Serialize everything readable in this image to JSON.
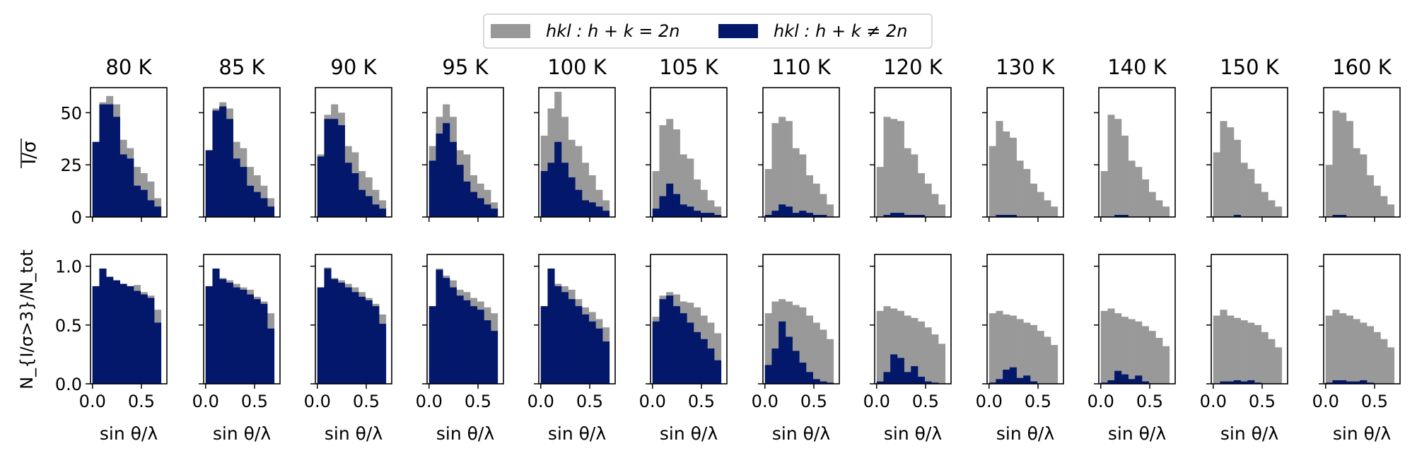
{
  "legend": {
    "placement": "top-center",
    "entries": [
      {
        "label": "hkl : h + k = 2n",
        "color": "#999999"
      },
      {
        "label": "hkl : h + k ≠ 2n",
        "color": "#03176b"
      }
    ]
  },
  "colors": {
    "allowed": "#999999",
    "forbidden": "#03176b"
  },
  "chart_data": {
    "type": "bar",
    "layout": "small-multiples 2x12 stacked-overlap histograms",
    "xlabel": "sin θ/λ",
    "x_bin_edges": [
      0.0,
      0.07,
      0.14,
      0.21,
      0.28,
      0.35,
      0.42,
      0.49,
      0.56,
      0.63,
      0.7
    ],
    "xlim": [
      -0.02,
      0.76
    ],
    "xticks": [
      0.0,
      0.5
    ],
    "xtick_labels": [
      "0.0",
      "0.5"
    ],
    "rows": [
      {
        "name": "mean_i_sigma",
        "ylabel": "I/σ",
        "ylim": [
          0,
          62
        ],
        "yticks": [
          0,
          25,
          50
        ],
        "ytick_labels": [
          "0",
          "25",
          "50"
        ]
      },
      {
        "name": "fraction_strong",
        "ylabel": "N_{I/σ>3}/N_tot",
        "ylim": [
          0,
          1.1
        ],
        "yticks": [
          0.0,
          0.5,
          1.0
        ],
        "ytick_labels": [
          "0.0",
          "0.5",
          "1.0"
        ]
      }
    ],
    "panels": [
      {
        "title": "80 K",
        "mean_i_sigma": {
          "allowed": [
            36,
            55,
            58,
            54,
            37,
            33,
            24,
            21,
            17,
            9
          ],
          "forbidden": [
            36,
            54,
            54,
            48,
            30,
            28,
            15,
            13,
            8,
            5
          ]
        },
        "fraction_strong": {
          "allowed": [
            0.83,
            0.98,
            0.91,
            0.88,
            0.85,
            0.83,
            0.84,
            0.78,
            0.75,
            0.63
          ],
          "forbidden": [
            0.83,
            0.98,
            0.91,
            0.88,
            0.85,
            0.83,
            0.79,
            0.76,
            0.73,
            0.52
          ]
        }
      },
      {
        "title": "85 K",
        "mean_i_sigma": {
          "allowed": [
            32,
            52,
            55,
            52,
            36,
            33,
            24,
            20,
            15,
            9
          ],
          "forbidden": [
            32,
            51,
            53,
            47,
            28,
            24,
            15,
            12,
            9,
            5
          ]
        },
        "fraction_strong": {
          "allowed": [
            0.83,
            0.98,
            0.9,
            0.88,
            0.85,
            0.82,
            0.8,
            0.74,
            0.7,
            0.6
          ],
          "forbidden": [
            0.83,
            0.98,
            0.89,
            0.86,
            0.82,
            0.8,
            0.76,
            0.72,
            0.68,
            0.47
          ]
        }
      },
      {
        "title": "90 K",
        "mean_i_sigma": {
          "allowed": [
            30,
            49,
            54,
            50,
            34,
            31,
            22,
            19,
            13,
            8
          ],
          "forbidden": [
            29,
            47,
            47,
            44,
            26,
            21,
            13,
            10,
            6,
            4
          ]
        },
        "fraction_strong": {
          "allowed": [
            0.82,
            0.99,
            0.9,
            0.88,
            0.85,
            0.82,
            0.78,
            0.73,
            0.68,
            0.59
          ],
          "forbidden": [
            0.82,
            0.98,
            0.89,
            0.86,
            0.82,
            0.78,
            0.74,
            0.71,
            0.66,
            0.51
          ]
        }
      },
      {
        "title": "95 K",
        "mean_i_sigma": {
          "allowed": [
            34,
            48,
            54,
            48,
            32,
            30,
            20,
            16,
            13,
            7
          ],
          "forbidden": [
            27,
            40,
            45,
            36,
            25,
            17,
            12,
            9,
            6,
            4
          ]
        },
        "fraction_strong": {
          "allowed": [
            0.66,
            0.98,
            0.92,
            0.88,
            0.8,
            0.78,
            0.73,
            0.7,
            0.65,
            0.6
          ],
          "forbidden": [
            0.66,
            0.97,
            0.9,
            0.82,
            0.75,
            0.71,
            0.66,
            0.63,
            0.54,
            0.45
          ]
        }
      },
      {
        "title": "100 K",
        "mean_i_sigma": {
          "allowed": [
            39,
            52,
            60,
            48,
            37,
            34,
            26,
            20,
            13,
            8
          ],
          "forbidden": [
            22,
            26,
            36,
            26,
            19,
            13,
            8,
            7,
            5,
            3
          ]
        },
        "fraction_strong": {
          "allowed": [
            0.66,
            0.98,
            0.85,
            0.83,
            0.8,
            0.72,
            0.65,
            0.61,
            0.55,
            0.48
          ],
          "forbidden": [
            0.66,
            0.98,
            0.83,
            0.78,
            0.72,
            0.66,
            0.59,
            0.53,
            0.47,
            0.36
          ]
        }
      },
      {
        "title": "105 K",
        "mean_i_sigma": {
          "allowed": [
            22,
            44,
            47,
            42,
            30,
            28,
            18,
            13,
            8,
            5
          ],
          "forbidden": [
            4,
            10,
            16,
            11,
            6,
            5,
            3,
            2,
            2,
            1
          ]
        },
        "fraction_strong": {
          "allowed": [
            0.57,
            0.75,
            0.78,
            0.76,
            0.7,
            0.69,
            0.65,
            0.58,
            0.52,
            0.43
          ],
          "forbidden": [
            0.53,
            0.72,
            0.75,
            0.66,
            0.6,
            0.52,
            0.44,
            0.38,
            0.3,
            0.2
          ]
        }
      },
      {
        "title": "110 K",
        "mean_i_sigma": {
          "allowed": [
            23,
            45,
            48,
            46,
            33,
            30,
            20,
            16,
            11,
            6
          ],
          "forbidden": [
            1,
            3,
            6,
            5,
            2,
            3,
            2,
            1,
            1,
            0
          ]
        },
        "fraction_strong": {
          "allowed": [
            0.6,
            0.7,
            0.72,
            0.7,
            0.67,
            0.65,
            0.58,
            0.52,
            0.46,
            0.38
          ],
          "forbidden": [
            0.16,
            0.3,
            0.53,
            0.4,
            0.28,
            0.18,
            0.1,
            0.04,
            0.02,
            0.01
          ]
        }
      },
      {
        "title": "120 K",
        "mean_i_sigma": {
          "allowed": [
            24,
            48,
            47,
            46,
            33,
            30,
            21,
            16,
            11,
            6
          ],
          "forbidden": [
            0,
            1,
            2,
            2,
            1,
            1,
            1,
            0,
            0,
            0
          ]
        },
        "fraction_strong": {
          "allowed": [
            0.62,
            0.66,
            0.64,
            0.62,
            0.58,
            0.56,
            0.53,
            0.48,
            0.42,
            0.34
          ],
          "forbidden": [
            0.02,
            0.1,
            0.25,
            0.22,
            0.1,
            0.15,
            0.06,
            0.02,
            0.01,
            0.0
          ]
        }
      },
      {
        "title": "130 K",
        "mean_i_sigma": {
          "allowed": [
            34,
            46,
            41,
            38,
            27,
            23,
            16,
            12,
            8,
            5
          ],
          "forbidden": [
            0,
            1,
            1,
            1,
            0,
            0,
            0,
            0,
            0,
            0
          ]
        },
        "fraction_strong": {
          "allowed": [
            0.6,
            0.62,
            0.59,
            0.58,
            0.55,
            0.52,
            0.5,
            0.45,
            0.4,
            0.33
          ],
          "forbidden": [
            0.01,
            0.04,
            0.12,
            0.14,
            0.05,
            0.07,
            0.02,
            0.0,
            0.0,
            0.0
          ]
        }
      },
      {
        "title": "140 K",
        "mean_i_sigma": {
          "allowed": [
            22,
            49,
            47,
            39,
            27,
            24,
            18,
            12,
            8,
            5
          ],
          "forbidden": [
            0,
            0,
            1,
            1,
            0,
            0,
            0,
            0,
            0,
            0
          ]
        },
        "fraction_strong": {
          "allowed": [
            0.62,
            0.64,
            0.6,
            0.57,
            0.55,
            0.53,
            0.49,
            0.45,
            0.39,
            0.32
          ],
          "forbidden": [
            0.01,
            0.03,
            0.11,
            0.08,
            0.04,
            0.07,
            0.02,
            0.0,
            0.0,
            0.0
          ]
        }
      },
      {
        "title": "150 K",
        "mean_i_sigma": {
          "allowed": [
            31,
            46,
            43,
            37,
            26,
            23,
            16,
            12,
            8,
            5
          ],
          "forbidden": [
            0,
            0,
            0,
            1,
            0,
            0,
            0,
            0,
            0,
            0
          ]
        },
        "fraction_strong": {
          "allowed": [
            0.58,
            0.63,
            0.58,
            0.56,
            0.54,
            0.52,
            0.5,
            0.44,
            0.38,
            0.31
          ],
          "forbidden": [
            0.0,
            0.02,
            0.02,
            0.03,
            0.02,
            0.03,
            0.01,
            0.0,
            0.0,
            0.0
          ]
        }
      },
      {
        "title": "160 K",
        "mean_i_sigma": {
          "allowed": [
            25,
            51,
            50,
            46,
            33,
            30,
            20,
            15,
            10,
            6
          ],
          "forbidden": [
            0,
            1,
            1,
            0,
            0,
            0,
            0,
            0,
            0,
            0
          ]
        },
        "fraction_strong": {
          "allowed": [
            0.58,
            0.63,
            0.6,
            0.58,
            0.55,
            0.52,
            0.49,
            0.44,
            0.38,
            0.31
          ],
          "forbidden": [
            0.01,
            0.03,
            0.03,
            0.02,
            0.02,
            0.03,
            0.01,
            0.0,
            0.0,
            0.0
          ]
        }
      }
    ]
  }
}
